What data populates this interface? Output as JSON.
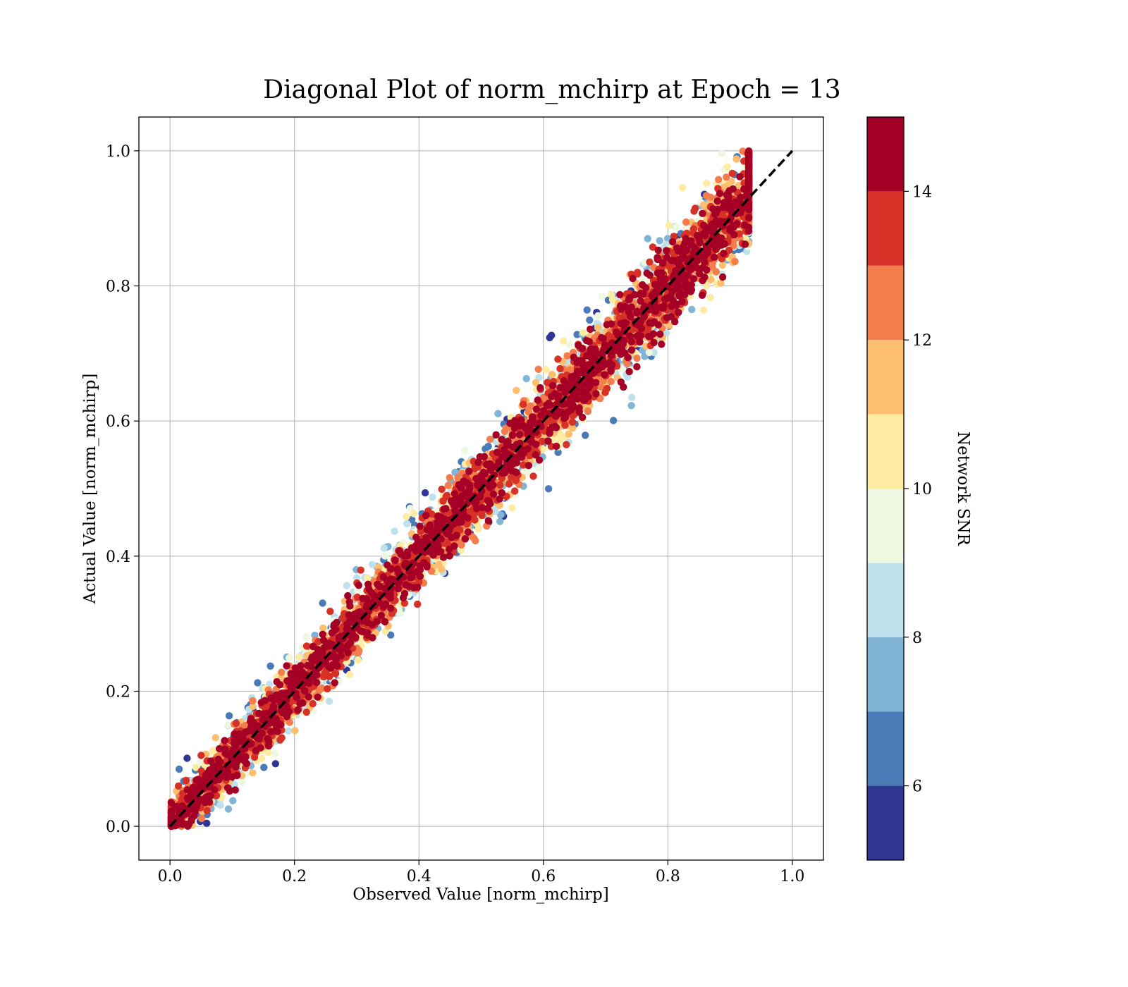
{
  "chart_data": {
    "type": "scatter",
    "title": "Diagonal Plot of norm_mchirp at Epoch = 13",
    "xlabel": "Observed Value [norm_mchirp]",
    "ylabel": "Actual Value [norm_mchirp]",
    "xlim": [
      -0.05,
      1.05
    ],
    "ylim": [
      -0.05,
      1.05
    ],
    "x_ticks": [
      "0.0",
      "0.2",
      "0.4",
      "0.6",
      "0.8",
      "1.0"
    ],
    "y_ticks": [
      "0.0",
      "0.2",
      "0.4",
      "0.6",
      "0.8",
      "1.0"
    ],
    "grid": true,
    "reference_line": {
      "style": "dashed",
      "color": "#000000",
      "from": [
        0,
        0
      ],
      "to": [
        1,
        1
      ]
    },
    "colorbar": {
      "label": "Network SNR",
      "range": [
        5,
        15
      ],
      "ticks": [
        "6",
        "8",
        "10",
        "12",
        "14"
      ],
      "tick_values": [
        6,
        8,
        10,
        12,
        14
      ],
      "levels": [
        {
          "from": 5,
          "to": 6,
          "color": "#313695"
        },
        {
          "from": 6,
          "to": 7,
          "color": "#4a7bb7"
        },
        {
          "from": 7,
          "to": 8,
          "color": "#81b4d5"
        },
        {
          "from": 8,
          "to": 9,
          "color": "#bfe1ec"
        },
        {
          "from": 9,
          "to": 10,
          "color": "#eef7e0"
        },
        {
          "from": 10,
          "to": 11,
          "color": "#feeca3"
        },
        {
          "from": 11,
          "to": 12,
          "color": "#fdbe70"
        },
        {
          "from": 12,
          "to": 13,
          "color": "#f47d4d"
        },
        {
          "from": 13,
          "to": 14,
          "color": "#d73027"
        },
        {
          "from": 14,
          "to": 15,
          "color": "#a50026"
        }
      ]
    },
    "series": [
      {
        "points": "dense scatter of observed vs actual norm_mchirp values; high SNR (>=14) points concentrate along the diagonal, low SNR points scatter widely; observed values range about 0.0–0.93, actual values 0.0–1.0"
      }
    ]
  }
}
